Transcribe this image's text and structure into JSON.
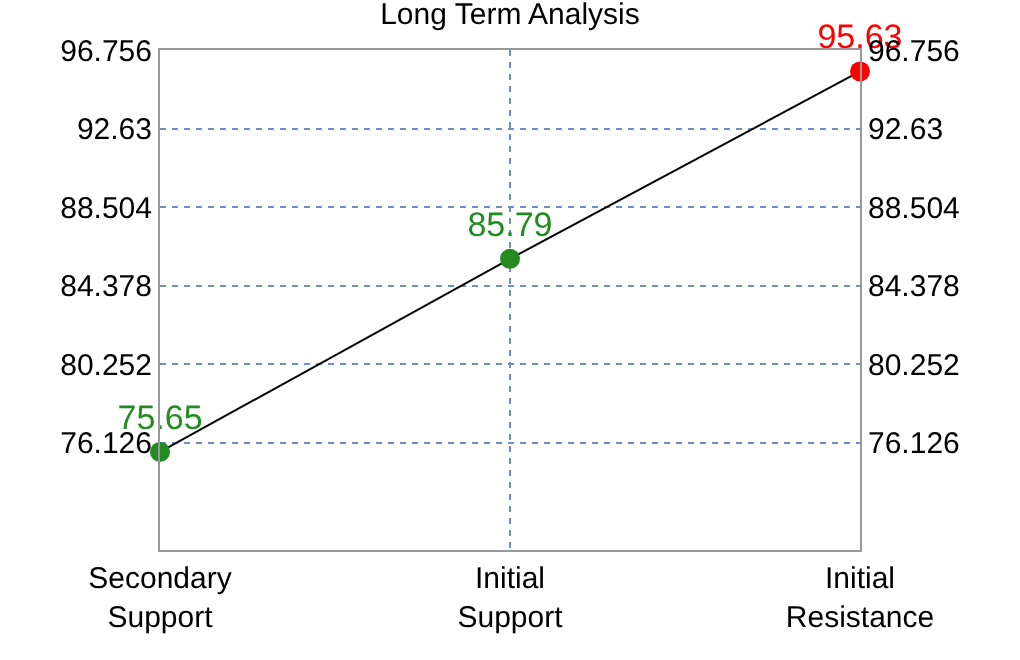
{
  "chart_data": {
    "type": "line",
    "title": "Long Term Analysis",
    "categories": [
      "Secondary Support",
      "Initial Support",
      "Initial Resistance"
    ],
    "series": [
      {
        "color": "#000000",
        "colors": [
          "#228b22",
          "#228b22",
          "#ff0000"
        ],
        "values": [
          75.65,
          85.79,
          95.63
        ]
      }
    ],
    "data_labels": true,
    "marker": "circle",
    "grid": true,
    "legend": false,
    "ylim": [
      70.5,
      96.756
    ],
    "yticks": [
      76.126,
      80.252,
      84.378,
      88.504,
      92.63,
      96.756
    ],
    "y2lim": [
      70.5,
      96.756
    ],
    "y2ticks": [
      76.126,
      80.252,
      84.378,
      88.504,
      92.63,
      96.756
    ]
  }
}
